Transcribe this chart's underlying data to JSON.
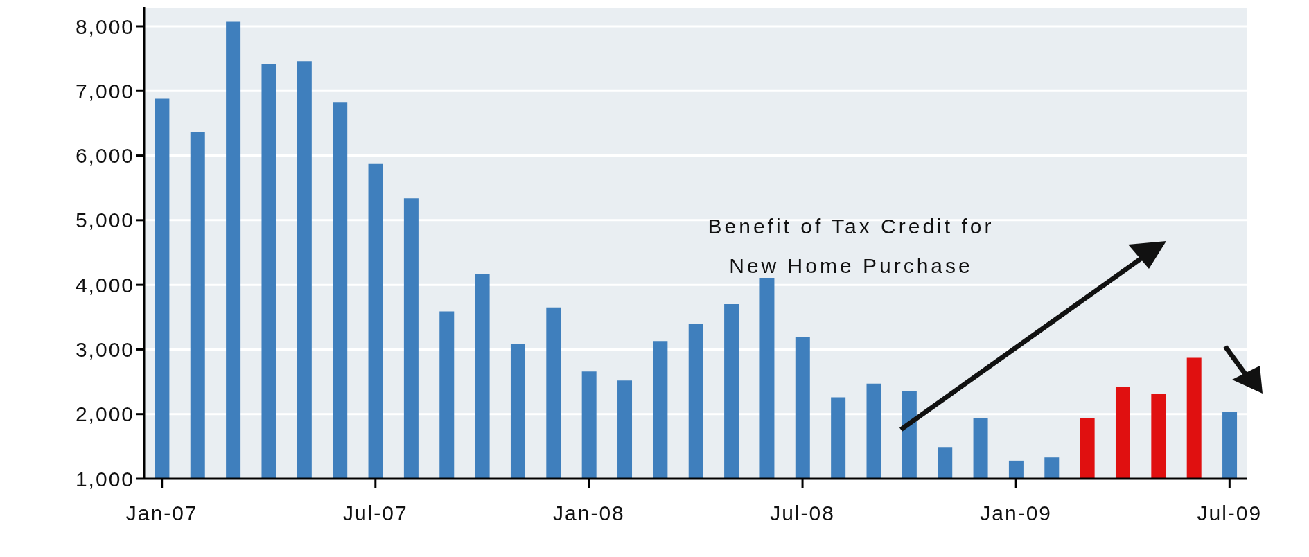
{
  "chart_data": {
    "type": "bar",
    "categories": [
      "Jan-07",
      null,
      null,
      null,
      null,
      null,
      "Jul-07",
      null,
      null,
      null,
      null,
      null,
      "Jan-08",
      null,
      null,
      null,
      null,
      null,
      "Jul-08",
      null,
      null,
      null,
      null,
      null,
      "Jan-09",
      null,
      null,
      null,
      null,
      null,
      "Jul-09"
    ],
    "values": [
      6880,
      6370,
      8070,
      7410,
      7460,
      6830,
      5870,
      5340,
      3590,
      4170,
      3080,
      3650,
      2660,
      2520,
      3130,
      3390,
      3700,
      4110,
      3190,
      2260,
      2470,
      2360,
      1490,
      1940,
      1280,
      1330,
      1940,
      2420,
      2310,
      2870,
      2040
    ],
    "colors": [
      "#3f7fbd",
      "#3f7fbd",
      "#3f7fbd",
      "#3f7fbd",
      "#3f7fbd",
      "#3f7fbd",
      "#3f7fbd",
      "#3f7fbd",
      "#3f7fbd",
      "#3f7fbd",
      "#3f7fbd",
      "#3f7fbd",
      "#3f7fbd",
      "#3f7fbd",
      "#3f7fbd",
      "#3f7fbd",
      "#3f7fbd",
      "#3f7fbd",
      "#3f7fbd",
      "#3f7fbd",
      "#3f7fbd",
      "#3f7fbd",
      "#3f7fbd",
      "#3f7fbd",
      "#3f7fbd",
      "#3f7fbd",
      "#e01010",
      "#e01010",
      "#e01010",
      "#e01010",
      "#3f7fbd"
    ],
    "ylim": [
      1000,
      8300
    ],
    "yticks": [
      {
        "value": 1000,
        "label": "1,000"
      },
      {
        "value": 2000,
        "label": "2,000"
      },
      {
        "value": 3000,
        "label": "3,000"
      },
      {
        "value": 4000,
        "label": "4,000"
      },
      {
        "value": 5000,
        "label": "5,000"
      },
      {
        "value": 6000,
        "label": "6,000"
      },
      {
        "value": 7000,
        "label": "7,000"
      },
      {
        "value": 8000,
        "label": "8,000"
      }
    ],
    "grid": "y",
    "annotations": [
      "Benefit of Tax Credit for New Home Purchase"
    ]
  }
}
